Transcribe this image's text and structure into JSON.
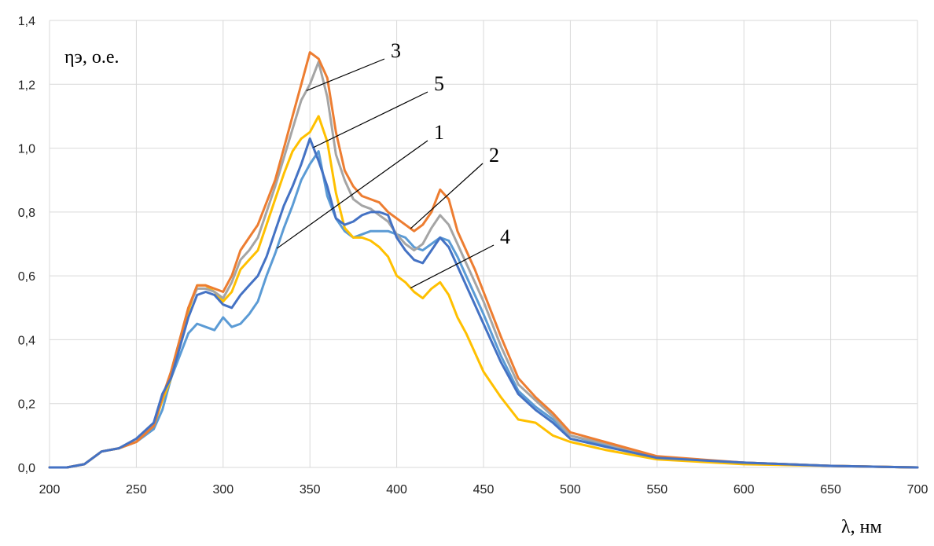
{
  "chart_data": {
    "type": "line",
    "xlabel": "λ, нм",
    "ylabel": "ηэ,  о.е.",
    "xlim": [
      200,
      700
    ],
    "ylim": [
      0,
      1.4
    ],
    "xticks": [
      "200",
      "250",
      "300",
      "350",
      "400",
      "450",
      "500",
      "550",
      "600",
      "650",
      "700"
    ],
    "yticks": [
      "0,0",
      "0,2",
      "0,4",
      "0,6",
      "0,8",
      "1,0",
      "1,2",
      "1,4"
    ],
    "grid": true,
    "x": [
      200,
      210,
      220,
      230,
      240,
      250,
      260,
      265,
      270,
      280,
      285,
      290,
      295,
      300,
      305,
      310,
      315,
      320,
      325,
      330,
      335,
      340,
      345,
      350,
      355,
      360,
      365,
      370,
      375,
      380,
      385,
      390,
      395,
      400,
      405,
      410,
      415,
      420,
      425,
      430,
      435,
      440,
      445,
      450,
      460,
      470,
      480,
      490,
      500,
      520,
      550,
      600,
      650,
      700
    ],
    "series": [
      {
        "label": "1",
        "color": "#5b9bd5",
        "values": [
          0.0,
          0.0,
          0.01,
          0.05,
          0.06,
          0.08,
          0.12,
          0.18,
          0.28,
          0.42,
          0.45,
          0.44,
          0.43,
          0.47,
          0.44,
          0.45,
          0.48,
          0.52,
          0.6,
          0.67,
          0.75,
          0.82,
          0.9,
          0.95,
          0.99,
          0.85,
          0.78,
          0.74,
          0.72,
          0.73,
          0.74,
          0.74,
          0.74,
          0.73,
          0.72,
          0.69,
          0.68,
          0.7,
          0.72,
          0.71,
          0.66,
          0.6,
          0.54,
          0.48,
          0.35,
          0.24,
          0.19,
          0.15,
          0.1,
          0.07,
          0.03,
          0.015,
          0.005,
          0.0
        ]
      },
      {
        "label": "2",
        "color": "#ed7d31",
        "values": [
          0.0,
          0.0,
          0.01,
          0.05,
          0.06,
          0.08,
          0.13,
          0.22,
          0.3,
          0.5,
          0.57,
          0.57,
          0.56,
          0.55,
          0.6,
          0.68,
          0.72,
          0.76,
          0.83,
          0.9,
          1.0,
          1.1,
          1.2,
          1.3,
          1.28,
          1.22,
          1.05,
          0.93,
          0.88,
          0.85,
          0.84,
          0.83,
          0.8,
          0.78,
          0.76,
          0.74,
          0.76,
          0.8,
          0.87,
          0.84,
          0.74,
          0.68,
          0.62,
          0.55,
          0.41,
          0.28,
          0.22,
          0.17,
          0.11,
          0.08,
          0.035,
          0.015,
          0.005,
          0.0
        ]
      },
      {
        "label": "3",
        "color": "#a5a5a5",
        "values": [
          0.0,
          0.0,
          0.01,
          0.05,
          0.06,
          0.08,
          0.13,
          0.22,
          0.3,
          0.5,
          0.56,
          0.56,
          0.55,
          0.53,
          0.58,
          0.65,
          0.68,
          0.72,
          0.8,
          0.88,
          0.97,
          1.06,
          1.15,
          1.2,
          1.27,
          1.16,
          0.98,
          0.9,
          0.84,
          0.82,
          0.81,
          0.79,
          0.77,
          0.73,
          0.7,
          0.68,
          0.7,
          0.75,
          0.79,
          0.76,
          0.7,
          0.64,
          0.58,
          0.52,
          0.38,
          0.26,
          0.21,
          0.16,
          0.1,
          0.075,
          0.03,
          0.015,
          0.005,
          0.0
        ]
      },
      {
        "label": "4",
        "color": "#ffc000",
        "values": [
          0.0,
          0.0,
          0.01,
          0.05,
          0.06,
          0.08,
          0.13,
          0.21,
          0.28,
          0.49,
          0.57,
          0.57,
          0.55,
          0.52,
          0.55,
          0.62,
          0.65,
          0.68,
          0.76,
          0.84,
          0.92,
          0.99,
          1.03,
          1.05,
          1.1,
          1.02,
          0.86,
          0.75,
          0.72,
          0.72,
          0.71,
          0.69,
          0.66,
          0.6,
          0.58,
          0.55,
          0.53,
          0.56,
          0.58,
          0.54,
          0.47,
          0.42,
          0.36,
          0.3,
          0.22,
          0.15,
          0.14,
          0.1,
          0.08,
          0.055,
          0.025,
          0.01,
          0.005,
          0.0
        ]
      },
      {
        "label": "5",
        "color": "#4472c4",
        "values": [
          0.0,
          0.0,
          0.01,
          0.05,
          0.06,
          0.09,
          0.14,
          0.23,
          0.28,
          0.47,
          0.54,
          0.55,
          0.54,
          0.51,
          0.5,
          0.54,
          0.57,
          0.6,
          0.66,
          0.74,
          0.82,
          0.88,
          0.95,
          1.03,
          0.96,
          0.88,
          0.78,
          0.76,
          0.77,
          0.79,
          0.8,
          0.8,
          0.79,
          0.72,
          0.68,
          0.65,
          0.64,
          0.68,
          0.72,
          0.69,
          0.63,
          0.57,
          0.51,
          0.45,
          0.33,
          0.23,
          0.18,
          0.14,
          0.09,
          0.065,
          0.03,
          0.015,
          0.005,
          0.0
        ]
      }
    ],
    "annotations": [
      {
        "text": "3",
        "series": "3",
        "x": 348
      },
      {
        "text": "5",
        "series": "5",
        "x": 352
      },
      {
        "text": "1",
        "series": "1",
        "x": 331
      },
      {
        "text": "2",
        "series": "2",
        "x": 408
      },
      {
        "text": "4",
        "series": "4",
        "x": 408
      }
    ]
  }
}
